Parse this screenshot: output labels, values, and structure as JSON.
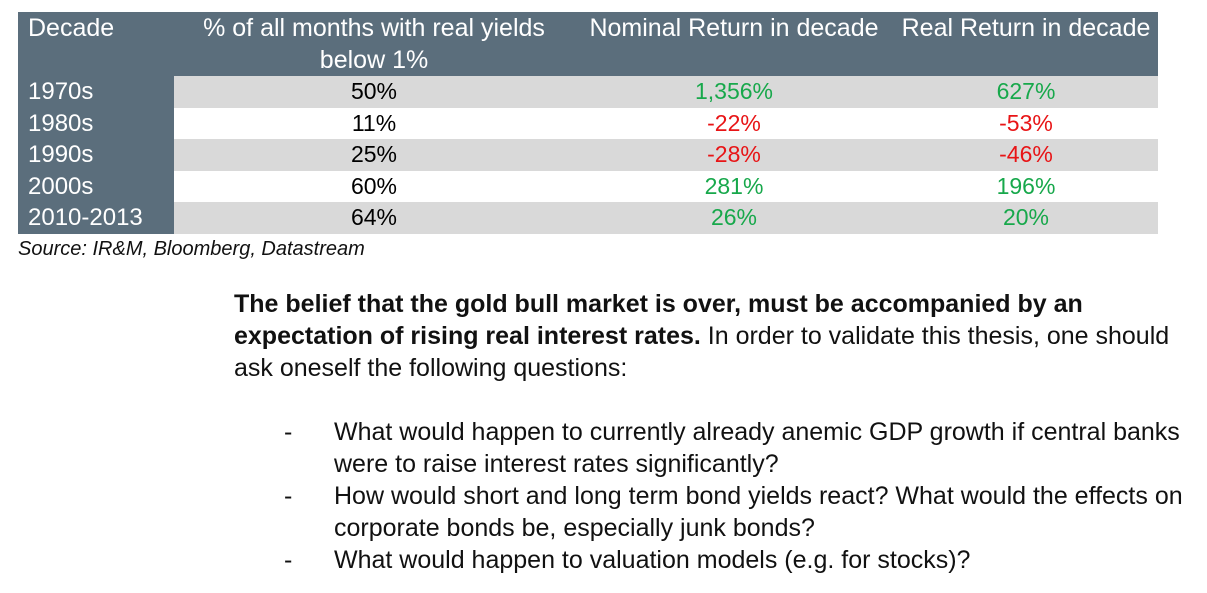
{
  "table": {
    "headers": [
      "Decade",
      "% of all months with real yields below 1%",
      "Nominal Return in decade",
      "Real Return in decade"
    ],
    "rows": [
      {
        "decade": "1970s",
        "pct": "50%",
        "nominal": "1,356%",
        "real": "627%"
      },
      {
        "decade": "1980s",
        "pct": "11%",
        "nominal": "-22%",
        "real": "-53%"
      },
      {
        "decade": "1990s",
        "pct": "25%",
        "nominal": "-28%",
        "real": "-46%"
      },
      {
        "decade": "2000s",
        "pct": "60%",
        "nominal": "281%",
        "real": "196%"
      },
      {
        "decade": "2010-2013",
        "pct": "64%",
        "nominal": "26%",
        "real": "20%"
      }
    ]
  },
  "source": "Source: IR&M, Bloomberg, Datastream",
  "paragraph": {
    "bold": "The belief that the gold bull market is over, must be accompanied by an expectation of rising real interest rates.",
    "rest": " In order to validate this thesis, one should ask oneself the following questions:"
  },
  "questions": [
    {
      "dash": "-",
      "text": "What would happen to currently already anemic GDP growth if central banks were to raise interest rates significantly?"
    },
    {
      "dash": "-",
      "text": "How would short and long term bond yields react? What would the effects on corporate bonds be, especially junk bonds?"
    },
    {
      "dash": "-",
      "text": "What would happen to valuation models (e.g. for stocks)?"
    }
  ],
  "colors": {
    "header_bg": "#5b6e7c",
    "shade_bg": "#d9d9d9",
    "positive": "#17a84b",
    "negative": "#e81416"
  }
}
